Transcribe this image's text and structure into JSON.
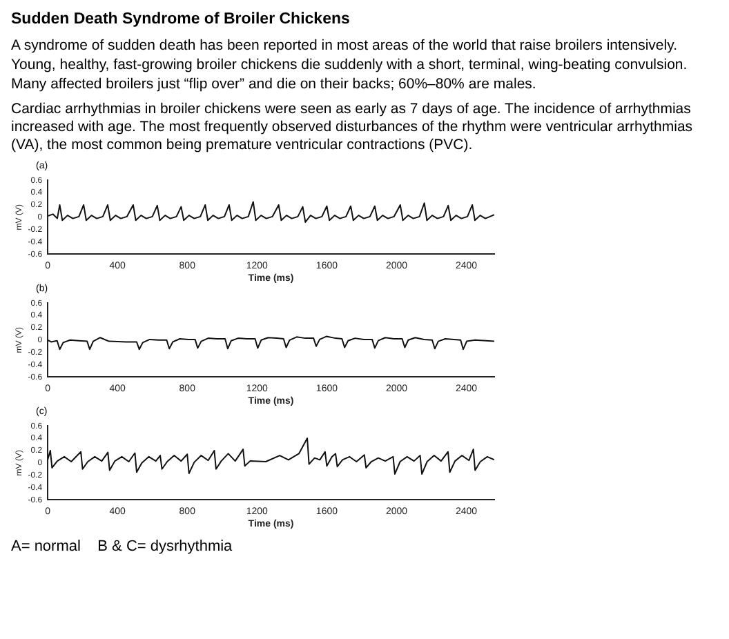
{
  "chart_data": [
    {
      "type": "line",
      "title": "Sudden Death Syndrome of Broiler Chickens",
      "subtitle": "A syndrome of sudden death has been reported in most areas of the world that raise broilers intensively. Young, healthy, fast-growing broiler chickens die suddenly with a short, terminal, wing-beating convulsion. Many affected broilers just “flip over” and die on their backs; 60%–80% are males.",
      "annotations": [
        "Cardiac arrhythmias in broiler chickens were seen as early as 7 days of age. The incidence of arrhythmias increased with age. The most frequently observed disturbances of the rhythm were ventricular arrhythmias (VA), the most common being premature ventricular contractions (PVC).",
        "(a)"
      ],
      "xlabel": "Time (ms)",
      "ylabel": "mV (V)",
      "xlim": [
        0,
        2560
      ],
      "xticks": [
        0,
        400,
        800,
        1200,
        1600,
        2000,
        2400
      ],
      "ylim": [
        -0.6,
        0.6
      ],
      "yticks": [
        -0.6,
        -0.4,
        -0.2,
        0,
        0.2,
        0.4,
        0.6
      ],
      "grid": false,
      "legend": false,
      "marker": "none",
      "line_style": "solid",
      "series": [
        {
          "color": "#111111",
          "x": [
            0,
            30,
            55,
            69,
            84,
            114,
            144,
            179,
            206,
            221,
            251,
            281,
            316,
            344,
            359,
            389,
            419,
            454,
            490,
            505,
            535,
            565,
            600,
            628,
            643,
            673,
            703,
            738,
            765,
            780,
            810,
            840,
            875,
            903,
            918,
            948,
            978,
            1013,
            1040,
            1055,
            1085,
            1115,
            1150,
            1178,
            1193,
            1223,
            1253,
            1288,
            1324,
            1339,
            1369,
            1399,
            1434,
            1462,
            1477,
            1507,
            1537,
            1572,
            1600,
            1615,
            1645,
            1675,
            1710,
            1737,
            1752,
            1782,
            1812,
            1847,
            1875,
            1890,
            1920,
            1950,
            1985,
            2021,
            2036,
            2066,
            2096,
            2131,
            2159,
            2174,
            2204,
            2234,
            2269,
            2296,
            2311,
            2341,
            2371,
            2406,
            2434,
            2449,
            2479,
            2509,
            2560
          ],
          "values": [
            0.02,
            0.05,
            -0.02,
            0.2,
            -0.05,
            0.03,
            -0.02,
            0.01,
            0.2,
            -0.05,
            0.03,
            -0.02,
            0.01,
            0.2,
            -0.05,
            0.03,
            -0.02,
            0.01,
            0.2,
            -0.05,
            0.03,
            -0.02,
            0.01,
            0.19,
            -0.05,
            0.03,
            -0.02,
            0.01,
            0.17,
            -0.05,
            0.03,
            -0.02,
            0.01,
            0.2,
            -0.05,
            0.03,
            -0.02,
            0.01,
            0.2,
            -0.05,
            0.03,
            -0.02,
            0.01,
            0.25,
            -0.05,
            0.03,
            -0.02,
            0.01,
            0.2,
            -0.05,
            0.03,
            -0.02,
            0.01,
            0.17,
            -0.08,
            0.03,
            -0.02,
            0.01,
            0.18,
            -0.05,
            0.03,
            -0.02,
            0.01,
            0.18,
            -0.05,
            0.03,
            -0.02,
            0.01,
            0.18,
            -0.05,
            0.03,
            -0.02,
            0.01,
            0.2,
            -0.05,
            0.03,
            -0.02,
            0.01,
            0.23,
            -0.05,
            0.03,
            -0.02,
            0.01,
            0.19,
            -0.05,
            0.03,
            -0.02,
            0.01,
            0.2,
            -0.05,
            0.03,
            -0.02,
            0.04
          ]
        }
      ]
    },
    {
      "type": "line",
      "annotations": [
        "(b)"
      ],
      "xlabel": "Time (ms)",
      "ylabel": "mV (V)",
      "xlim": [
        0,
        2560
      ],
      "xticks": [
        0,
        400,
        800,
        1200,
        1600,
        2000,
        2400
      ],
      "ylim": [
        -0.6,
        0.6
      ],
      "yticks": [
        -0.6,
        -0.4,
        -0.2,
        0,
        0.2,
        0.4,
        0.6
      ],
      "grid": false,
      "legend": false,
      "marker": "none",
      "line_style": "solid",
      "series": [
        {
          "color": "#111111",
          "x": [
            0,
            20,
            54,
            69,
            89,
            129,
            179,
            226,
            241,
            261,
            301,
            351,
            450,
            510,
            525,
            545,
            585,
            635,
            682,
            697,
            717,
            757,
            807,
            845,
            860,
            880,
            920,
            970,
            1017,
            1032,
            1052,
            1092,
            1142,
            1189,
            1204,
            1224,
            1264,
            1314,
            1352,
            1367,
            1387,
            1427,
            1477,
            1524,
            1539,
            1559,
            1599,
            1649,
            1687,
            1702,
            1722,
            1762,
            1812,
            1860,
            1875,
            1895,
            1935,
            1985,
            2032,
            2047,
            2067,
            2107,
            2157,
            2204,
            2219,
            2239,
            2279,
            2329,
            2367,
            2382,
            2402,
            2450,
            2560
          ],
          "values": [
            0.0,
            -0.03,
            -0.01,
            -0.15,
            -0.04,
            0.0,
            -0.01,
            -0.02,
            -0.15,
            -0.02,
            0.04,
            -0.02,
            -0.03,
            -0.03,
            -0.15,
            -0.04,
            0.01,
            0.0,
            0.0,
            -0.14,
            -0.03,
            0.02,
            0.01,
            0.01,
            -0.13,
            -0.02,
            0.03,
            0.02,
            0.02,
            -0.14,
            -0.01,
            0.03,
            0.02,
            0.02,
            -0.13,
            0.0,
            0.04,
            0.03,
            0.02,
            -0.12,
            0.0,
            0.05,
            0.03,
            0.03,
            -0.1,
            0.01,
            0.06,
            0.03,
            0.02,
            -0.12,
            -0.01,
            0.03,
            0.01,
            0.01,
            -0.13,
            -0.01,
            0.04,
            0.02,
            0.02,
            -0.12,
            0.0,
            0.04,
            0.01,
            0.0,
            -0.14,
            -0.02,
            0.02,
            0.01,
            0.0,
            -0.15,
            -0.02,
            0.0,
            -0.02
          ]
        }
      ]
    },
    {
      "type": "line",
      "annotations": [
        "(c)",
        "A= normal    B & C= dysrhythmia"
      ],
      "xlabel": "Time (ms)",
      "ylabel": "mV (V)",
      "xlim": [
        0,
        2560
      ],
      "xticks": [
        0,
        400,
        800,
        1200,
        1600,
        2000,
        2400
      ],
      "ylim": [
        -0.6,
        0.6
      ],
      "yticks": [
        -0.6,
        -0.4,
        -0.2,
        0,
        0.2,
        0.4,
        0.6
      ],
      "grid": false,
      "legend": false,
      "marker": "none",
      "line_style": "solid",
      "series": [
        {
          "color": "#111111",
          "x": [
            0,
            15,
            25,
            55,
            95,
            135,
            190,
            200,
            230,
            270,
            310,
            345,
            355,
            385,
            425,
            465,
            500,
            510,
            540,
            580,
            620,
            645,
            655,
            685,
            725,
            765,
            800,
            810,
            840,
            880,
            920,
            955,
            965,
            995,
            1035,
            1075,
            1120,
            1130,
            1160,
            1250,
            1330,
            1380,
            1440,
            1488,
            1498,
            1530,
            1560,
            1590,
            1600,
            1630,
            1650,
            1660,
            1690,
            1730,
            1770,
            1815,
            1825,
            1855,
            1895,
            1935,
            1980,
            1990,
            2020,
            2060,
            2100,
            2135,
            2145,
            2175,
            2215,
            2255,
            2295,
            2305,
            2335,
            2375,
            2415,
            2440,
            2450,
            2480,
            2520,
            2560
          ],
          "values": [
            0.05,
            0.2,
            -0.08,
            0.03,
            0.1,
            0.02,
            0.18,
            -0.1,
            0.02,
            0.1,
            0.03,
            0.17,
            -0.12,
            0.03,
            0.1,
            0.02,
            0.16,
            -0.15,
            0.0,
            0.1,
            0.03,
            0.12,
            -0.1,
            0.02,
            0.12,
            0.03,
            0.14,
            -0.17,
            0.01,
            0.12,
            0.04,
            0.2,
            -0.1,
            0.03,
            0.15,
            0.03,
            0.22,
            -0.05,
            0.03,
            0.02,
            0.12,
            0.05,
            0.15,
            0.4,
            -0.02,
            0.08,
            0.05,
            0.18,
            -0.05,
            0.1,
            0.15,
            -0.06,
            0.05,
            0.1,
            0.02,
            0.13,
            -0.08,
            0.02,
            0.08,
            0.03,
            0.1,
            -0.18,
            0.02,
            0.1,
            0.03,
            0.12,
            -0.18,
            0.02,
            0.12,
            0.03,
            0.18,
            -0.15,
            0.03,
            0.12,
            0.04,
            0.22,
            -0.12,
            0.02,
            0.1,
            0.05
          ]
        }
      ]
    }
  ]
}
